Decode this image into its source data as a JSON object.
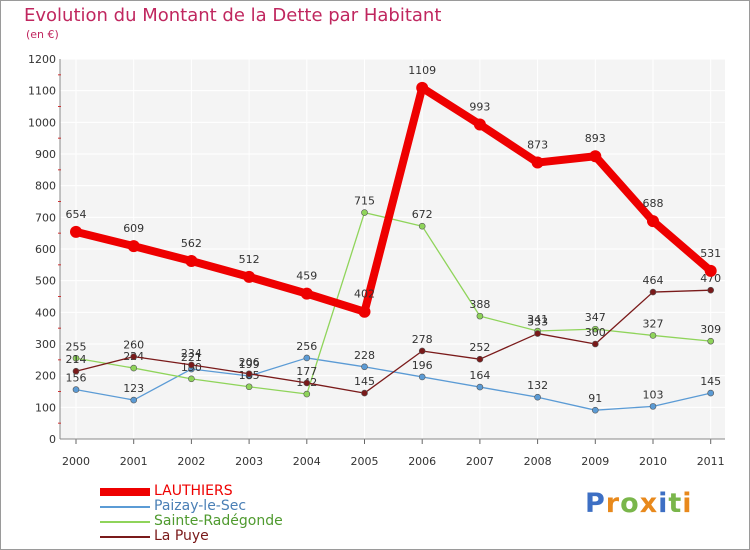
{
  "header": {
    "title": "Evolution du Montant de la Dette par Habitant",
    "subtitle": "(en €)"
  },
  "logo": {
    "text": "Proxiti",
    "letters": [
      {
        "ch": "P",
        "color": "#3d6fc4"
      },
      {
        "ch": "r",
        "color": "#e8891c"
      },
      {
        "ch": "o",
        "color": "#7ab64b"
      },
      {
        "ch": "x",
        "color": "#e8891c"
      },
      {
        "ch": "i",
        "color": "#3d6fc4"
      },
      {
        "ch": "t",
        "color": "#7ab64b"
      },
      {
        "ch": "i",
        "color": "#e8891c"
      }
    ]
  },
  "chart_data": {
    "type": "line",
    "title": "Evolution du Montant de la Dette par Habitant",
    "subtitle": "(en €)",
    "x": [
      "2000",
      "2001",
      "2002",
      "2003",
      "2004",
      "2005",
      "2006",
      "2007",
      "2008",
      "2009",
      "2010",
      "2011"
    ],
    "ylim": [
      0,
      1200
    ],
    "yticks": [
      "0",
      "100",
      "200",
      "300",
      "400",
      "500",
      "600",
      "700",
      "800",
      "900",
      "1000",
      "1100",
      "1200"
    ],
    "grid": true,
    "legend_position": "bottom-left",
    "series": [
      {
        "name": "LAUTHIERS",
        "color": "#ee0000",
        "values": [
          654,
          609,
          562,
          512,
          459,
          402,
          1109,
          993,
          873,
          893,
          688,
          531
        ]
      },
      {
        "name": "Paizay-le-Sec",
        "color": "#5b9bd5",
        "values": [
          156,
          123,
          221,
          199,
          256,
          228,
          196,
          164,
          132,
          91,
          103,
          145
        ]
      },
      {
        "name": "Sainte-Radégonde",
        "color": "#8fd45a",
        "values": [
          255,
          224,
          190,
          165,
          142,
          715,
          672,
          388,
          341,
          347,
          327,
          309
        ]
      },
      {
        "name": "La Puye",
        "color": "#7a1a1a",
        "values": [
          214,
          260,
          234,
          206,
          177,
          145,
          278,
          252,
          333,
          300,
          464,
          470
        ]
      }
    ]
  }
}
